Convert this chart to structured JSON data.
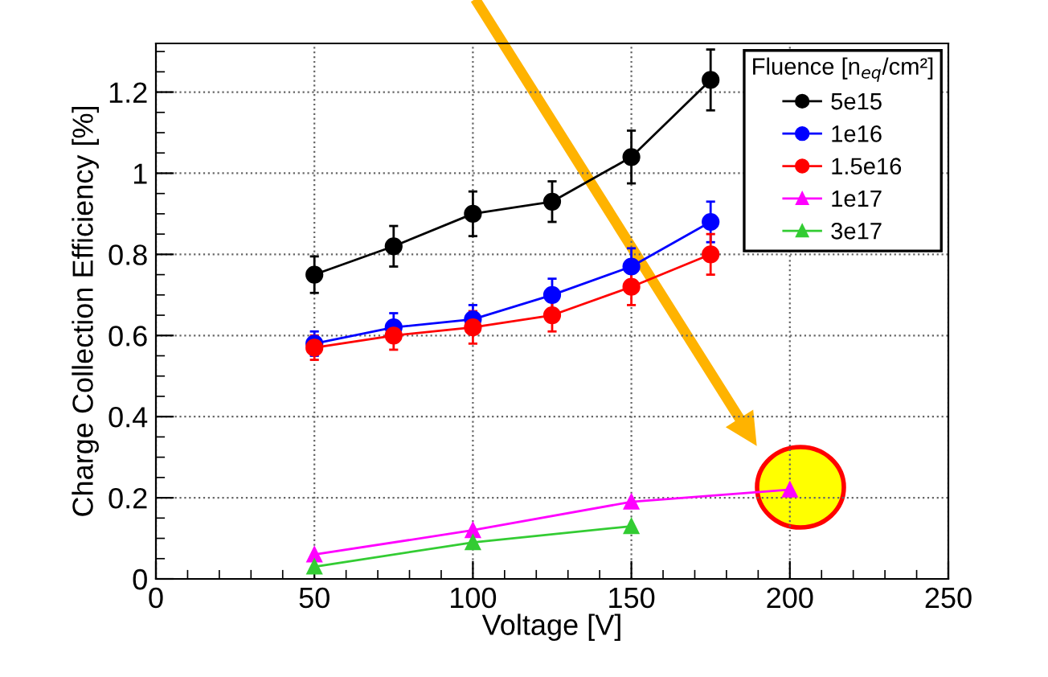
{
  "chart_data": {
    "type": "line",
    "xlabel": "Voltage [V]",
    "ylabel": "Charge Collection Efficiency [%]",
    "legend_title": "Fluence [n$_{eq}$/cm²]",
    "xlim": [
      0,
      250
    ],
    "xticks": [
      0,
      50,
      100,
      150,
      200,
      250
    ],
    "ylim": [
      0,
      1.32
    ],
    "yticks": [
      0,
      0.2,
      0.4,
      0.6,
      0.8,
      1,
      1.2
    ],
    "grid": true,
    "legend": "top right",
    "series": [
      {
        "name": "5e15",
        "color": "#000000",
        "marker": "circle",
        "x": [
          50,
          75,
          100,
          125,
          150,
          175
        ],
        "values": [
          0.75,
          0.82,
          0.9,
          0.93,
          1.04,
          1.23
        ],
        "errors": [
          0.045,
          0.05,
          0.055,
          0.05,
          0.065,
          0.075
        ]
      },
      {
        "name": "1e16",
        "color": "#0000ff",
        "marker": "circle",
        "x": [
          50,
          75,
          100,
          125,
          150,
          175
        ],
        "values": [
          0.58,
          0.62,
          0.64,
          0.7,
          0.77,
          0.88
        ],
        "errors": [
          0.03,
          0.035,
          0.035,
          0.04,
          0.045,
          0.05
        ]
      },
      {
        "name": "1.5e16",
        "color": "#ff0000",
        "marker": "circle",
        "x": [
          50,
          75,
          100,
          125,
          150,
          175
        ],
        "values": [
          0.57,
          0.6,
          0.62,
          0.65,
          0.72,
          0.8
        ],
        "errors": [
          0.03,
          0.035,
          0.04,
          0.04,
          0.045,
          0.05
        ]
      },
      {
        "name": "1e17",
        "color": "#ff00ff",
        "marker": "triangle",
        "x": [
          50,
          100,
          150,
          200
        ],
        "values": [
          0.06,
          0.12,
          0.19,
          0.22
        ]
      },
      {
        "name": "3e17",
        "color": "#33cc33",
        "marker": "triangle",
        "x": [
          50,
          100,
          150
        ],
        "values": [
          0.03,
          0.09,
          0.13
        ]
      }
    ]
  }
}
